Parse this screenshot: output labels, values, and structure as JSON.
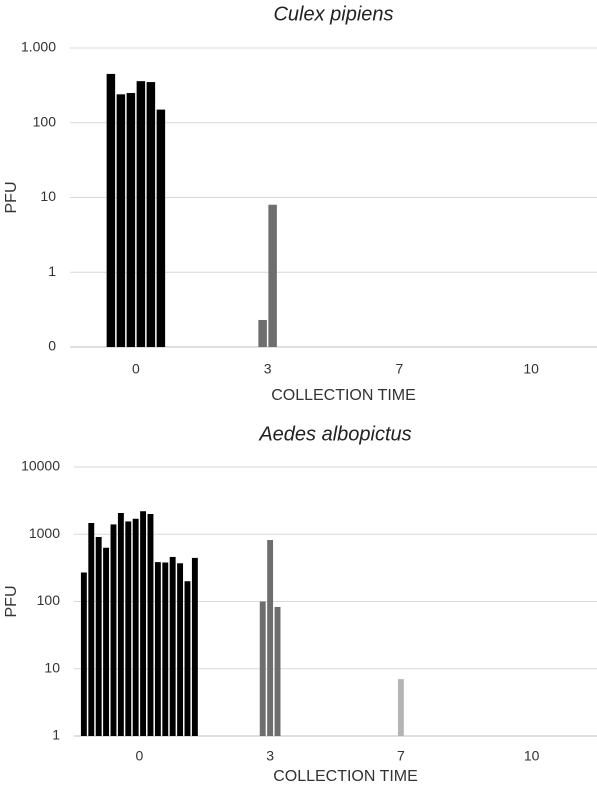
{
  "chart_data": [
    {
      "type": "bar",
      "title": "Culex pipiens",
      "x_label": "COLLECTION TIME",
      "y_label": "PFU",
      "log_scale": true,
      "grid": true,
      "categories": [
        "0",
        "3",
        "7",
        "10"
      ],
      "colors": [
        "#000000",
        "#6e6e6e",
        null,
        null
      ],
      "values": [
        [
          450,
          240,
          250,
          360,
          350,
          150
        ],
        [
          0.23,
          8
        ],
        [],
        []
      ],
      "ylim": [
        0.1,
        1000
      ],
      "yticks": [
        {
          "value": 0.1,
          "label": "0"
        },
        1,
        10,
        100,
        {
          "value": 1000,
          "label": "1.000"
        }
      ]
    },
    {
      "type": "bar",
      "title": "Aedes albopictus",
      "x_label": "COLLECTION TIME",
      "y_label": "PFU",
      "log_scale": true,
      "grid": true,
      "categories": [
        "0",
        "3",
        "7",
        "10"
      ],
      "colors": [
        "#000000",
        "#6e6e6e",
        "#b4b4b4",
        null
      ],
      "values": [
        [
          270,
          1470,
          910,
          630,
          1400,
          2070,
          1550,
          1700,
          2200,
          2000,
          385,
          380,
          460,
          370,
          200,
          445
        ],
        [
          100,
          820,
          83
        ],
        [
          7
        ],
        []
      ],
      "ylim": [
        1,
        10000
      ],
      "yticks": [
        1,
        10,
        100,
        1000,
        10000
      ]
    }
  ]
}
